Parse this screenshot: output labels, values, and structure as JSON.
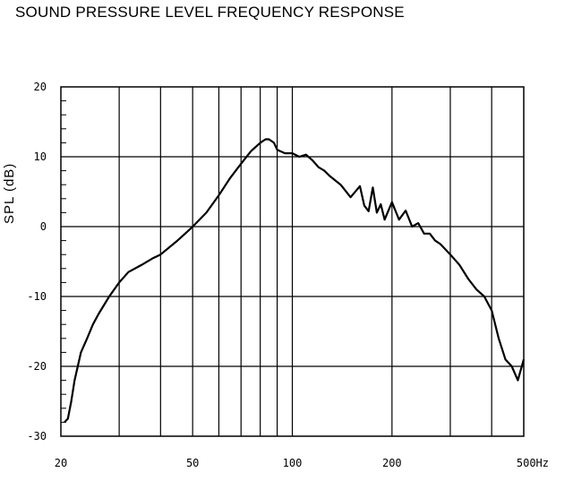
{
  "chart_data": {
    "type": "line",
    "title": "SOUND PRESSURE LEVEL FREQUENCY RESPONSE",
    "xlabel": "",
    "ylabel": "SPL (dB)",
    "xscale": "log",
    "xlim": [
      20,
      500
    ],
    "ylim": [
      -30,
      20
    ],
    "grid": true,
    "x_ticks": [
      "20",
      "50",
      "100",
      "200",
      "500Hz"
    ],
    "x_tick_values": [
      20,
      50,
      100,
      200,
      500
    ],
    "y_ticks": [
      "20",
      "10",
      "0",
      "-10",
      "-20",
      "-30"
    ],
    "y_tick_values": [
      20,
      10,
      0,
      -10,
      -20,
      -30
    ],
    "series": [
      {
        "color": "#000000",
        "x": [
          20.5,
          21,
          21.5,
          22,
          23,
          24,
          25,
          26,
          28,
          30,
          32,
          35,
          38,
          40,
          45,
          48,
          50,
          55,
          60,
          65,
          70,
          75,
          80,
          83,
          85,
          88,
          90,
          95,
          100,
          105,
          110,
          115,
          120,
          125,
          130,
          140,
          150,
          160,
          165,
          170,
          175,
          180,
          185,
          190,
          200,
          210,
          220,
          230,
          240,
          250,
          260,
          270,
          280,
          300,
          320,
          340,
          360,
          380,
          400,
          420,
          440,
          460,
          480,
          500
        ],
        "y": [
          -28,
          -27.5,
          -25,
          -22,
          -18,
          -16,
          -14,
          -12.5,
          -10,
          -8,
          -6.5,
          -5.5,
          -4.5,
          -4,
          -2,
          -0.8,
          0,
          2,
          4.5,
          7,
          9,
          10.8,
          12,
          12.5,
          12.5,
          12,
          11,
          10.5,
          10.5,
          10,
          10.3,
          9.5,
          8.5,
          8,
          7.2,
          6,
          4.2,
          5.8,
          3,
          2.2,
          5.6,
          2,
          3.2,
          1,
          3.5,
          1,
          2.3,
          0,
          0.5,
          -1,
          -1,
          -2,
          -2.5,
          -4,
          -5.5,
          -7.5,
          -9,
          -10,
          -12,
          -16,
          -19,
          -20,
          -22,
          -19
        ]
      }
    ]
  }
}
